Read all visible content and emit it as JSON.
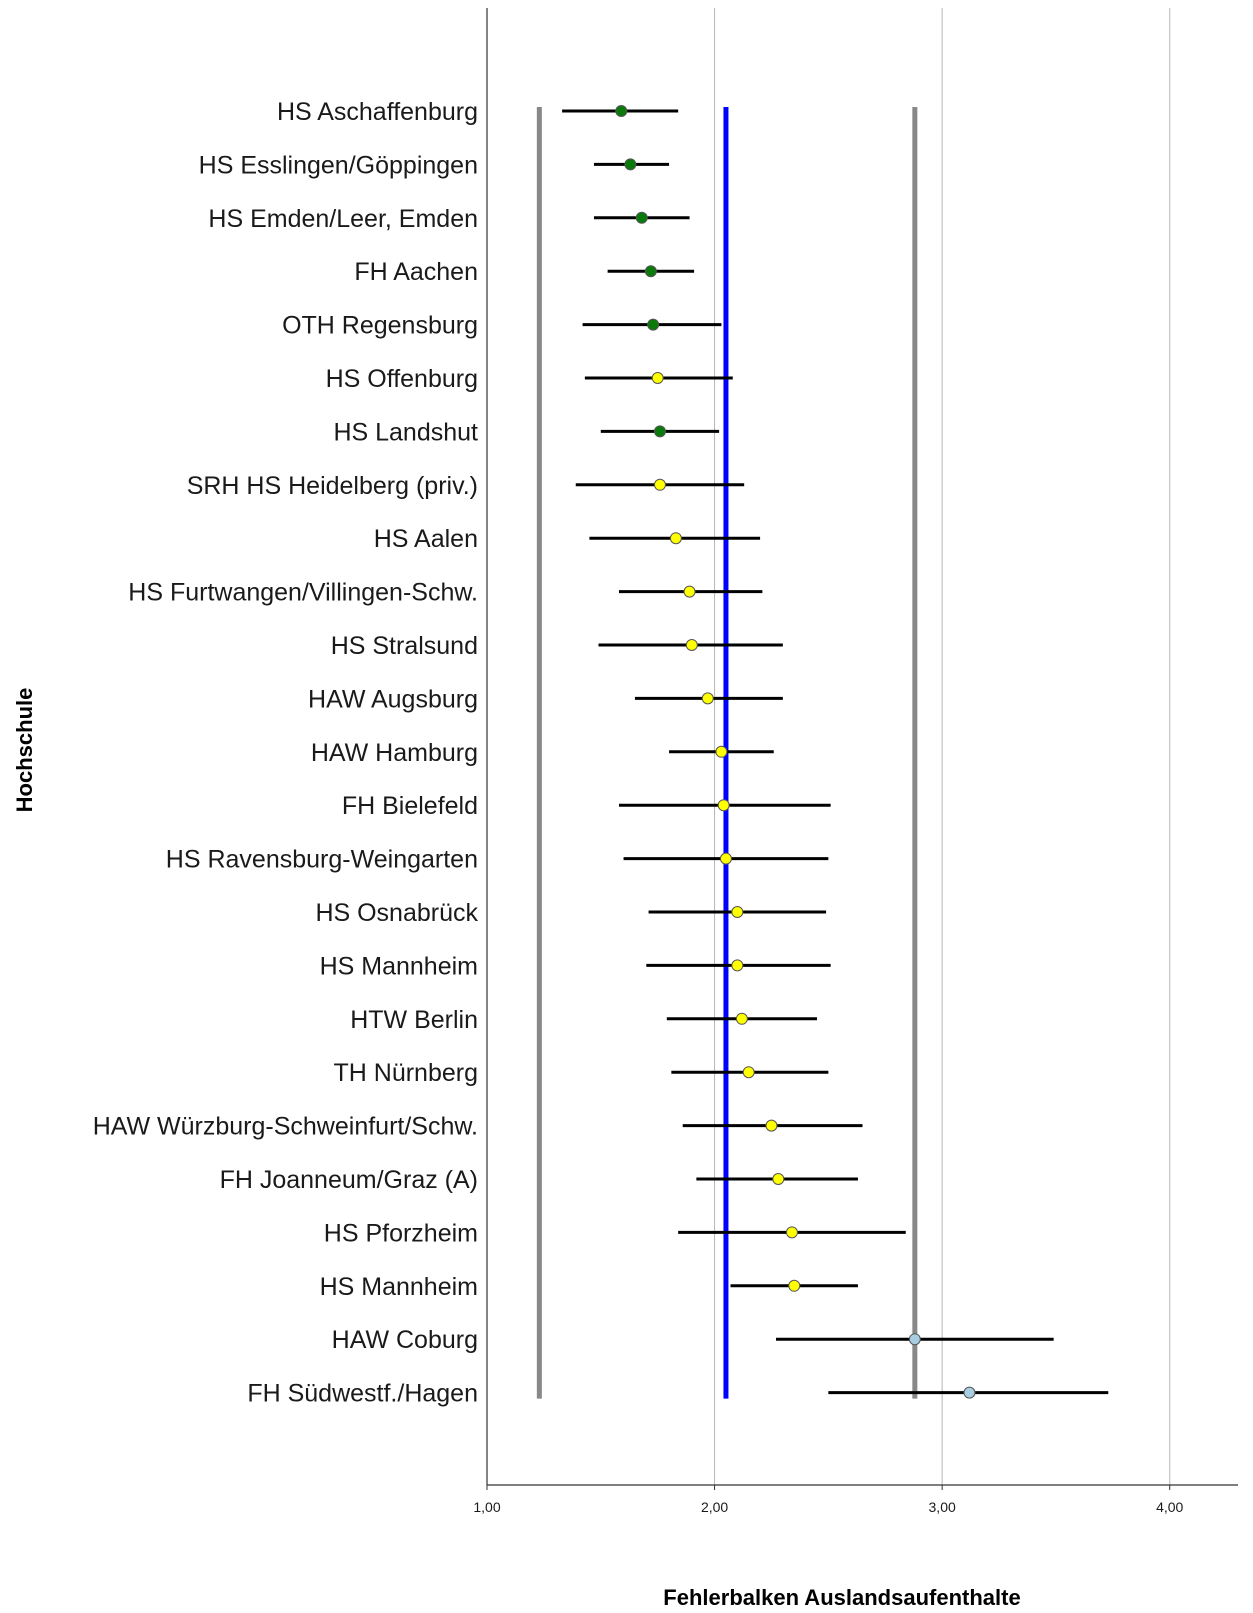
{
  "chart_data": {
    "type": "errorbar",
    "xlabel": "Fehlerbalken Auslandsaufenthalte",
    "ylabel": "Hochschule",
    "xlim": [
      1.0,
      4.3
    ],
    "xticks": [
      1.0,
      2.0,
      3.0,
      4.0
    ],
    "xtick_labels": [
      "1,00",
      "2,00",
      "3,00",
      "4,00"
    ],
    "gridlines": [
      2.0,
      3.0,
      4.0
    ],
    "reference_lines": [
      {
        "value": 1.23,
        "color": "#888888"
      },
      {
        "value": 2.05,
        "color": "#0000ff"
      },
      {
        "value": 2.88,
        "color": "#888888"
      }
    ],
    "marker_colors": {
      "green": "#0a7a0a",
      "yellow": "#ffff00",
      "lightblue": "#a8cce0"
    },
    "series": [
      {
        "label": "HS Aschaffenburg",
        "mean": 1.59,
        "low": 1.33,
        "high": 1.84,
        "color": "green"
      },
      {
        "label": "HS Esslingen/Göppingen",
        "mean": 1.63,
        "low": 1.47,
        "high": 1.8,
        "color": "green"
      },
      {
        "label": "HS Emden/Leer, Emden",
        "mean": 1.68,
        "low": 1.47,
        "high": 1.89,
        "color": "green"
      },
      {
        "label": "FH Aachen",
        "mean": 1.72,
        "low": 1.53,
        "high": 1.91,
        "color": "green"
      },
      {
        "label": "OTH Regensburg",
        "mean": 1.73,
        "low": 1.42,
        "high": 2.03,
        "color": "green"
      },
      {
        "label": "HS Offenburg",
        "mean": 1.75,
        "low": 1.43,
        "high": 2.08,
        "color": "yellow"
      },
      {
        "label": "HS Landshut",
        "mean": 1.76,
        "low": 1.5,
        "high": 2.02,
        "color": "green"
      },
      {
        "label": "SRH HS Heidelberg (priv.)",
        "mean": 1.76,
        "low": 1.39,
        "high": 2.13,
        "color": "yellow"
      },
      {
        "label": "HS Aalen",
        "mean": 1.83,
        "low": 1.45,
        "high": 2.2,
        "color": "yellow"
      },
      {
        "label": "HS Furtwangen/Villingen-Schw.",
        "mean": 1.89,
        "low": 1.58,
        "high": 2.21,
        "color": "yellow"
      },
      {
        "label": "HS Stralsund",
        "mean": 1.9,
        "low": 1.49,
        "high": 2.3,
        "color": "yellow"
      },
      {
        "label": "HAW Augsburg",
        "mean": 1.97,
        "low": 1.65,
        "high": 2.3,
        "color": "yellow"
      },
      {
        "label": "HAW Hamburg",
        "mean": 2.03,
        "low": 1.8,
        "high": 2.26,
        "color": "yellow"
      },
      {
        "label": "FH Bielefeld",
        "mean": 2.04,
        "low": 1.58,
        "high": 2.51,
        "color": "yellow"
      },
      {
        "label": "HS Ravensburg-Weingarten",
        "mean": 2.05,
        "low": 1.6,
        "high": 2.5,
        "color": "yellow"
      },
      {
        "label": "HS Osnabrück",
        "mean": 2.1,
        "low": 1.71,
        "high": 2.49,
        "color": "yellow"
      },
      {
        "label": "HS Mannheim",
        "mean": 2.1,
        "low": 1.7,
        "high": 2.51,
        "color": "yellow"
      },
      {
        "label": "HTW Berlin",
        "mean": 2.12,
        "low": 1.79,
        "high": 2.45,
        "color": "yellow"
      },
      {
        "label": "TH Nürnberg",
        "mean": 2.15,
        "low": 1.81,
        "high": 2.5,
        "color": "yellow"
      },
      {
        "label": "HAW Würzburg-Schweinfurt/Schw.",
        "mean": 2.25,
        "low": 1.86,
        "high": 2.65,
        "color": "yellow"
      },
      {
        "label": "FH Joanneum/Graz (A)",
        "mean": 2.28,
        "low": 1.92,
        "high": 2.63,
        "color": "yellow"
      },
      {
        "label": "HS Pforzheim",
        "mean": 2.34,
        "low": 1.84,
        "high": 2.84,
        "color": "yellow"
      },
      {
        "label": "HS Mannheim",
        "mean": 2.35,
        "low": 2.07,
        "high": 2.63,
        "color": "yellow"
      },
      {
        "label": "HAW Coburg",
        "mean": 2.88,
        "low": 2.27,
        "high": 3.49,
        "color": "lightblue"
      },
      {
        "label": "FH Südwestf./Hagen",
        "mean": 3.12,
        "low": 2.5,
        "high": 3.73,
        "color": "lightblue"
      }
    ]
  }
}
